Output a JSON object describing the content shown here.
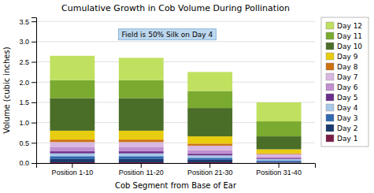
{
  "chart_data": {
    "type": "bar",
    "stacked": true,
    "title": "Cumulative Growth in Cob Volume During Pollination",
    "xlabel": "Cob Segment from Base of Ear",
    "ylabel": "Volume (cubic inches)",
    "categories": [
      "Position 1-10",
      "Position 11-20",
      "Position 21-30",
      "Position 31-40"
    ],
    "series": [
      {
        "name": "Day 1",
        "color": "#7B1C47",
        "values": [
          0.02,
          0.02,
          0.02,
          0.01
        ]
      },
      {
        "name": "Day 2",
        "color": "#1A3A6E",
        "values": [
          0.08,
          0.08,
          0.06,
          0.02
        ]
      },
      {
        "name": "Day 3",
        "color": "#3068B0",
        "values": [
          0.07,
          0.07,
          0.05,
          0.03
        ]
      },
      {
        "name": "Day 4",
        "color": "#A8C8E8",
        "values": [
          0.07,
          0.07,
          0.06,
          0.04
        ]
      },
      {
        "name": "Day 5",
        "color": "#6B2D8B",
        "values": [
          0.05,
          0.05,
          0.04,
          0.02
        ]
      },
      {
        "name": "Day 6",
        "color": "#C090D0",
        "values": [
          0.1,
          0.1,
          0.09,
          0.04
        ]
      },
      {
        "name": "Day 7",
        "color": "#D8B8E0",
        "values": [
          0.13,
          0.13,
          0.11,
          0.06
        ]
      },
      {
        "name": "Day 8",
        "color": "#CC7010",
        "values": [
          0.06,
          0.06,
          0.05,
          0.02
        ]
      },
      {
        "name": "Day 9",
        "color": "#E8CC10",
        "values": [
          0.22,
          0.22,
          0.18,
          0.1
        ]
      },
      {
        "name": "Day 10",
        "color": "#4A6E28",
        "values": [
          0.8,
          0.8,
          0.7,
          0.32
        ]
      },
      {
        "name": "Day 11",
        "color": "#7AAA30",
        "values": [
          0.45,
          0.45,
          0.42,
          0.37
        ]
      },
      {
        "name": "Day 12",
        "color": "#C0E060",
        "values": [
          0.6,
          0.55,
          0.47,
          0.47
        ]
      }
    ],
    "annotations": [
      "Field is 50% Silk on Day 4"
    ],
    "ylim": [
      0,
      3.6
    ],
    "yticks": [
      {
        "value": 0,
        "label": "0.0"
      },
      {
        "value": 0.5,
        "label": "0.5"
      },
      {
        "value": 1,
        "label": "1.0"
      },
      {
        "value": 1.5,
        "label": "1.5"
      },
      {
        "value": 2,
        "label": "2.0"
      },
      {
        "value": 2.5,
        "label": "2.5"
      },
      {
        "value": 3,
        "label": "3.0"
      },
      {
        "value": 3.5,
        "label": "3.5"
      }
    ],
    "grid": true,
    "legend": "right"
  }
}
